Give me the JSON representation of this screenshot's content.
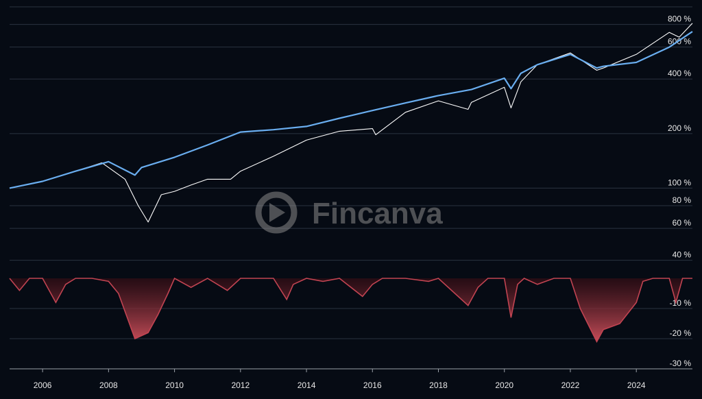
{
  "watermark": "Fincanva",
  "chart_data": [
    {
      "type": "line",
      "log_scale": true,
      "grid": true,
      "xlim": [
        2005,
        2025.7
      ],
      "ylim": [
        35,
        1000
      ],
      "yticks": [
        {
          "value": 40,
          "label": "40 %"
        },
        {
          "value": 60,
          "label": "60 %"
        },
        {
          "value": 80,
          "label": "80 %"
        },
        {
          "value": 100,
          "label": "100 %"
        },
        {
          "value": 200,
          "label": "200 %"
        },
        {
          "value": 400,
          "label": "400 %"
        },
        {
          "value": 600,
          "label": "600 %"
        },
        {
          "value": 800,
          "label": "800 %"
        }
      ],
      "series": [
        {
          "color": "#ffffff",
          "x": [
            2005,
            2006,
            2007,
            2007.8,
            2008.5,
            2008.9,
            2009.2,
            2009.6,
            2010,
            2010.5,
            2011,
            2011.7,
            2012,
            2013,
            2014,
            2015,
            2016,
            2016.1,
            2017,
            2018,
            2018.9,
            2019,
            2020,
            2020.2,
            2020.5,
            2021,
            2022,
            2022.8,
            2023,
            2024,
            2025,
            2025.3,
            2025.7
          ],
          "values": [
            100,
            109,
            124,
            138,
            112,
            80,
            65,
            92,
            96,
            104,
            112,
            112,
            124,
            150,
            184,
            206,
            213,
            197,
            262,
            303,
            272,
            297,
            360,
            277,
            386,
            480,
            557,
            447,
            460,
            547,
            723,
            680,
            812
          ]
        },
        {
          "color": "#6aaef0",
          "x": [
            2005,
            2006,
            2007,
            2008,
            2008.8,
            2009,
            2010,
            2011,
            2012,
            2013,
            2014,
            2015,
            2016,
            2017,
            2018,
            2019,
            2020,
            2020.2,
            2020.5,
            2021,
            2022,
            2022.8,
            2023,
            2024,
            2025,
            2025.7
          ],
          "values": [
            100,
            109,
            124,
            140,
            118,
            130,
            148,
            173,
            204,
            210,
            219,
            243,
            268,
            295,
            324,
            350,
            404,
            354,
            430,
            480,
            547,
            460,
            470,
            494,
            600,
            730
          ]
        }
      ]
    },
    {
      "type": "area",
      "color": "#c24452",
      "grid": true,
      "xlim": [
        2005,
        2025.7
      ],
      "ylim": [
        -30,
        0
      ],
      "yticks": [
        {
          "value": -10,
          "label": "-10 %"
        },
        {
          "value": -20,
          "label": "-20 %"
        },
        {
          "value": -30,
          "label": "-30 %"
        }
      ],
      "xticks": [
        2006,
        2008,
        2010,
        2012,
        2014,
        2016,
        2018,
        2020,
        2022,
        2024
      ],
      "x": [
        2005,
        2005.3,
        2005.6,
        2006,
        2006.4,
        2006.7,
        2007,
        2007.5,
        2008,
        2008.3,
        2008.8,
        2009.2,
        2009.5,
        2009.8,
        2010,
        2010.5,
        2011,
        2011.6,
        2012,
        2013,
        2013.4,
        2013.6,
        2014,
        2014.5,
        2015,
        2015.7,
        2016,
        2016.3,
        2017,
        2017.7,
        2018,
        2018.9,
        2019.2,
        2019.5,
        2020,
        2020.2,
        2020.4,
        2020.6,
        2021,
        2021.5,
        2022,
        2022.3,
        2022.8,
        2023,
        2023.5,
        2024,
        2024.2,
        2024.5,
        2025,
        2025.2,
        2025.4,
        2025.7
      ],
      "values": [
        0,
        -4,
        0,
        0,
        -8,
        -2,
        0,
        0,
        -1,
        -5,
        -20,
        -18,
        -12,
        -5,
        0,
        -3,
        0,
        -4,
        0,
        0,
        -7,
        -2,
        0,
        -1,
        0,
        -6,
        -2,
        0,
        0,
        -1,
        0,
        -9,
        -3,
        0,
        0,
        -13,
        -2,
        0,
        -2,
        0,
        0,
        -10,
        -21,
        -17,
        -15,
        -8,
        -1,
        0,
        0,
        -8,
        0,
        0
      ]
    }
  ]
}
